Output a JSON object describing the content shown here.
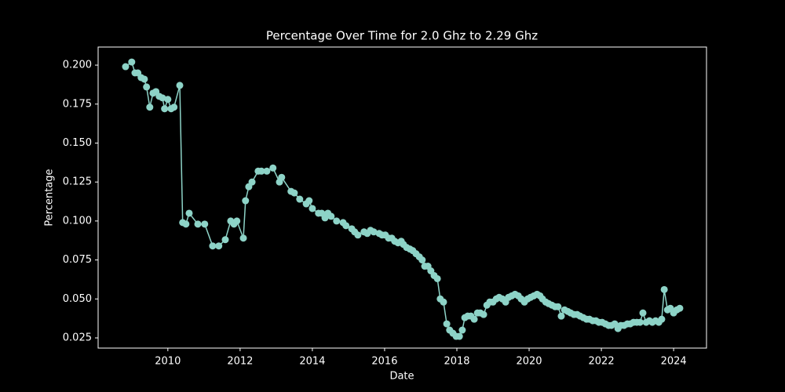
{
  "chart_data": {
    "type": "line",
    "title": "Percentage Over Time for 2.0 Ghz to 2.29 Ghz",
    "x_label": "Date",
    "y_label": "Percentage",
    "color": "#8dd3c7",
    "grid": false,
    "xlim": [
      2008.07,
      2024.91
    ],
    "ylim": [
      0.01846,
      0.2116
    ],
    "xticks": [
      2010,
      2012,
      2014,
      2016,
      2018,
      2020,
      2022,
      2024
    ],
    "yticks": [
      {
        "value": 0.025,
        "label": "0.025"
      },
      {
        "value": 0.05,
        "label": "0.050"
      },
      0.075,
      {
        "value": 0.1,
        "label": "0.100"
      },
      0.125,
      {
        "value": 0.15,
        "label": "0.150"
      },
      0.175,
      {
        "value": 0.2,
        "label": "0.200"
      }
    ],
    "x": [
      2008.83,
      2009.0,
      2009.09,
      2009.17,
      2009.26,
      2009.35,
      2009.41,
      2009.5,
      2009.59,
      2009.67,
      2009.76,
      2009.85,
      2009.91,
      2010.0,
      2010.09,
      2010.17,
      2010.33,
      2010.41,
      2010.5,
      2010.59,
      2010.83,
      2011.02,
      2011.24,
      2011.41,
      2011.59,
      2011.74,
      2011.83,
      2011.91,
      2012.09,
      2012.15,
      2012.24,
      2012.33,
      2012.5,
      2012.59,
      2012.74,
      2012.91,
      2013.09,
      2013.15,
      2013.41,
      2013.5,
      2013.65,
      2013.83,
      2013.91,
      2014.0,
      2014.17,
      2014.26,
      2014.35,
      2014.43,
      2014.52,
      2014.67,
      2014.85,
      2014.93,
      2015.09,
      2015.17,
      2015.26,
      2015.43,
      2015.52,
      2015.61,
      2015.7,
      2015.85,
      2015.93,
      2016.02,
      2016.11,
      2016.2,
      2016.28,
      2016.37,
      2016.46,
      2016.52,
      2016.61,
      2016.7,
      2016.78,
      2016.87,
      2016.96,
      2017.04,
      2017.11,
      2017.2,
      2017.28,
      2017.37,
      2017.46,
      2017.54,
      2017.63,
      2017.72,
      2017.8,
      2017.89,
      2017.98,
      2018.07,
      2018.15,
      2018.22,
      2018.3,
      2018.39,
      2018.48,
      2018.57,
      2018.65,
      2018.74,
      2018.83,
      2018.91,
      2019.0,
      2019.09,
      2019.17,
      2019.26,
      2019.35,
      2019.43,
      2019.52,
      2019.61,
      2019.7,
      2019.78,
      2019.87,
      2019.96,
      2020.04,
      2020.13,
      2020.22,
      2020.3,
      2020.37,
      2020.46,
      2020.54,
      2020.63,
      2020.72,
      2020.8,
      2020.89,
      2020.98,
      2021.07,
      2021.15,
      2021.24,
      2021.33,
      2021.41,
      2021.5,
      2021.59,
      2021.67,
      2021.76,
      2021.85,
      2021.93,
      2022.02,
      2022.11,
      2022.2,
      2022.28,
      2022.37,
      2022.46,
      2022.54,
      2022.63,
      2022.72,
      2022.8,
      2022.89,
      2022.98,
      2023.07,
      2023.15,
      2023.24,
      2023.33,
      2023.41,
      2023.5,
      2023.59,
      2023.67,
      2023.74,
      2023.83,
      2023.91,
      2024.0,
      2024.09,
      2024.17
    ],
    "values": [
      0.199,
      0.202,
      0.195,
      0.195,
      0.192,
      0.191,
      0.186,
      0.173,
      0.182,
      0.183,
      0.18,
      0.179,
      0.172,
      0.178,
      0.172,
      0.173,
      0.187,
      0.099,
      0.098,
      0.105,
      0.098,
      0.098,
      0.084,
      0.084,
      0.088,
      0.1,
      0.098,
      0.1,
      0.089,
      0.113,
      0.122,
      0.125,
      0.132,
      0.132,
      0.132,
      0.134,
      0.125,
      0.128,
      0.119,
      0.118,
      0.114,
      0.111,
      0.113,
      0.108,
      0.105,
      0.105,
      0.102,
      0.105,
      0.103,
      0.1,
      0.099,
      0.097,
      0.095,
      0.093,
      0.091,
      0.093,
      0.092,
      0.094,
      0.093,
      0.092,
      0.091,
      0.091,
      0.089,
      0.089,
      0.087,
      0.086,
      0.087,
      0.085,
      0.083,
      0.082,
      0.081,
      0.079,
      0.077,
      0.075,
      0.071,
      0.071,
      0.068,
      0.065,
      0.063,
      0.05,
      0.048,
      0.034,
      0.03,
      0.028,
      0.026,
      0.026,
      0.03,
      0.038,
      0.039,
      0.039,
      0.037,
      0.041,
      0.041,
      0.04,
      0.046,
      0.048,
      0.048,
      0.05,
      0.051,
      0.05,
      0.048,
      0.051,
      0.052,
      0.053,
      0.052,
      0.05,
      0.048,
      0.05,
      0.051,
      0.052,
      0.053,
      0.052,
      0.05,
      0.048,
      0.047,
      0.046,
      0.045,
      0.045,
      0.039,
      0.043,
      0.042,
      0.041,
      0.04,
      0.04,
      0.039,
      0.038,
      0.037,
      0.037,
      0.036,
      0.036,
      0.035,
      0.035,
      0.034,
      0.033,
      0.033,
      0.034,
      0.031,
      0.033,
      0.033,
      0.034,
      0.034,
      0.035,
      0.035,
      0.035,
      0.041,
      0.035,
      0.036,
      0.035,
      0.036,
      0.035,
      0.037,
      0.056,
      0.043,
      0.044,
      0.041,
      0.043,
      0.044
    ]
  }
}
